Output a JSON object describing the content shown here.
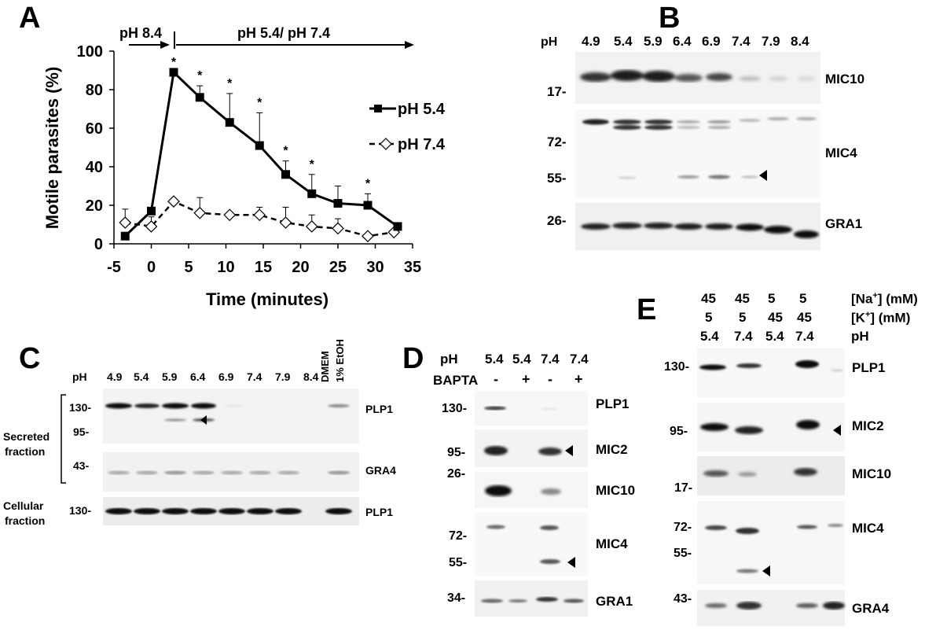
{
  "panels": {
    "A": {
      "letter": "A",
      "phase1_label": "pH 8.4",
      "phase2_label": "pH 5.4/ pH 7.4",
      "chart_data": {
        "type": "line",
        "xlabel": "Time (minutes)",
        "ylabel": "Motile parasites (%)",
        "xlim": [
          -5,
          35
        ],
        "ylim": [
          0,
          100
        ],
        "xticks": [
          "-5",
          "0",
          "5",
          "10",
          "15",
          "20",
          "25",
          "30",
          "35"
        ],
        "yticks": [
          "0",
          "20",
          "40",
          "60",
          "80",
          "100"
        ],
        "legend_position": "top-right",
        "series": [
          {
            "name": "pH 5.4",
            "marker": "filled-square",
            "line": "solid",
            "x": [
              -3.5,
              0,
              3,
              6.5,
              10.5,
              14.5,
              18,
              21.5,
              25,
              29,
              33
            ],
            "y": [
              4,
              17,
              89,
              76,
              63,
              51,
              36,
              26,
              21,
              20,
              9
            ],
            "error": [
              0,
              0,
              0,
              6,
              15,
              17,
              7,
              10,
              9,
              6,
              0
            ],
            "significant": [
              false,
              false,
              true,
              true,
              true,
              true,
              true,
              true,
              false,
              true,
              false
            ]
          },
          {
            "name": "pH 7.4",
            "marker": "open-diamond",
            "line": "dashed",
            "x": [
              -3.5,
              0,
              3,
              6.5,
              10.5,
              14.5,
              18,
              21.5,
              25,
              29,
              32.5
            ],
            "y": [
              11,
              9,
              22,
              16,
              15,
              15,
              11,
              9,
              8,
              4,
              6
            ],
            "error": [
              7,
              5,
              0,
              8,
              0,
              4,
              8,
              6,
              5,
              0,
              0
            ]
          }
        ],
        "significance_marker": "*"
      }
    },
    "B": {
      "letter": "B",
      "ph_header": "pH",
      "ph_values": [
        "4.9",
        "5.4",
        "5.9",
        "6.4",
        "6.9",
        "7.4",
        "7.9",
        "8.4"
      ],
      "mw": [
        "17-",
        "72-",
        "55-",
        "26-"
      ],
      "proteins": [
        "MIC10",
        "MIC4",
        "GRA1"
      ]
    },
    "C": {
      "letter": "C",
      "ph_header": "pH",
      "ph_values": [
        "4.9",
        "5.4",
        "5.9",
        "6.4",
        "6.9",
        "7.4",
        "7.9",
        "8.4"
      ],
      "extra_lane_1": "DMEM",
      "extra_lane_2": "1% EtOH",
      "mw": [
        "130-",
        "95-",
        "43-",
        "130-"
      ],
      "proteins": [
        "PLP1",
        "GRA4",
        "PLP1"
      ],
      "secreted_1": "Secreted",
      "secreted_2": "fraction",
      "cellular_1": "Cellular",
      "cellular_2": "fraction"
    },
    "D": {
      "letter": "D",
      "ph_header": "pH",
      "ph_values": [
        "5.4",
        "5.4",
        "7.4",
        "7.4"
      ],
      "bapta_header": "BAPTA",
      "bapta_values": [
        "-",
        "+",
        "-",
        "+"
      ],
      "mw": [
        "130-",
        "95-",
        "26-",
        "72-",
        "55-",
        "34-"
      ],
      "proteins": [
        "PLP1",
        "MIC2",
        "MIC10",
        "MIC4",
        "GRA1"
      ]
    },
    "E": {
      "letter": "E",
      "na_values": [
        "45",
        "45",
        "5",
        "5"
      ],
      "na_label": "[Na",
      "k_values": [
        "5",
        "5",
        "45",
        "45"
      ],
      "k_label": "[K",
      "plus": "+",
      "unit": "] (mM)",
      "ph_values": [
        "5.4",
        "7.4",
        "5.4",
        "7.4"
      ],
      "ph_label": "pH",
      "mw": [
        "130-",
        "95-",
        "17-",
        "72-",
        "55-",
        "43-"
      ],
      "proteins": [
        "PLP1",
        "MIC2",
        "MIC10",
        "MIC4",
        "GRA4"
      ]
    }
  }
}
